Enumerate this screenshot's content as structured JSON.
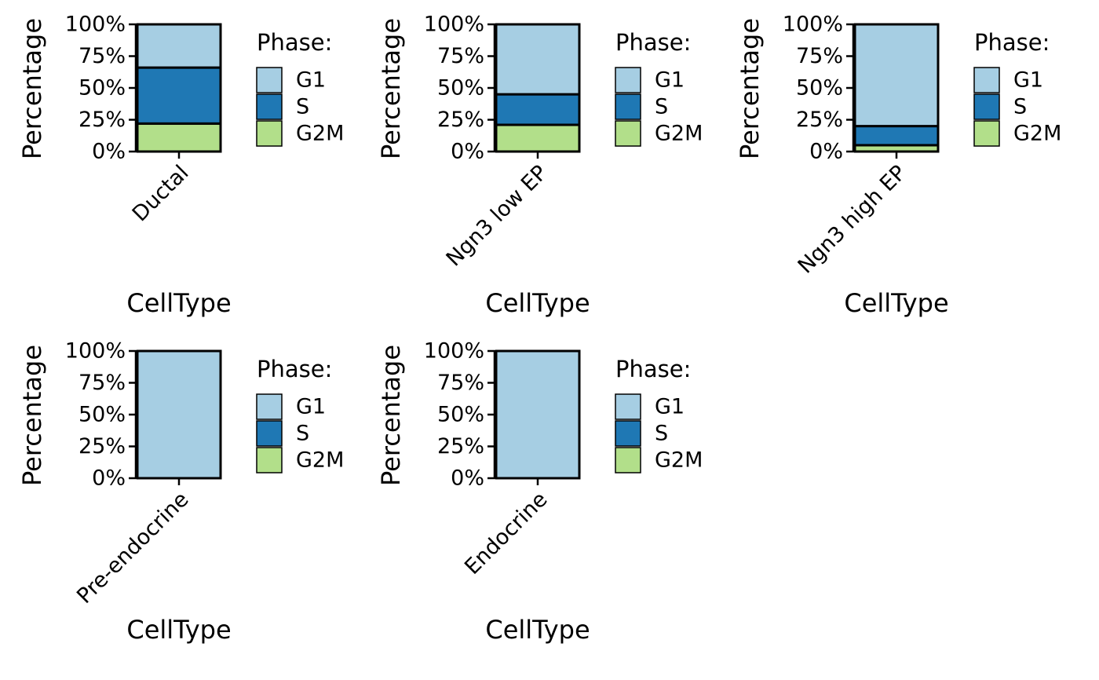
{
  "chart_data": [
    {
      "type": "bar",
      "stacked": true,
      "categories": [
        "Ductal"
      ],
      "series": [
        {
          "name": "G1",
          "values": [
            34
          ]
        },
        {
          "name": "S",
          "values": [
            44
          ]
        },
        {
          "name": "G2M",
          "values": [
            22
          ]
        }
      ],
      "xlabel": "CellType",
      "ylabel": "Percentage",
      "yticks": [
        "0%",
        "25%",
        "50%",
        "75%",
        "100%"
      ],
      "ylim": [
        0,
        100
      ],
      "legend_title": "Phase:",
      "legend_placement": "right"
    },
    {
      "type": "bar",
      "stacked": true,
      "categories": [
        "Ngn3 low EP"
      ],
      "series": [
        {
          "name": "G1",
          "values": [
            55
          ]
        },
        {
          "name": "S",
          "values": [
            24
          ]
        },
        {
          "name": "G2M",
          "values": [
            21
          ]
        }
      ],
      "xlabel": "CellType",
      "ylabel": "Percentage",
      "yticks": [
        "0%",
        "25%",
        "50%",
        "75%",
        "100%"
      ],
      "ylim": [
        0,
        100
      ],
      "legend_title": "Phase:",
      "legend_placement": "right"
    },
    {
      "type": "bar",
      "stacked": true,
      "categories": [
        "Ngn3 high EP"
      ],
      "series": [
        {
          "name": "G1",
          "values": [
            80
          ]
        },
        {
          "name": "S",
          "values": [
            15
          ]
        },
        {
          "name": "G2M",
          "values": [
            5
          ]
        }
      ],
      "xlabel": "CellType",
      "ylabel": "Percentage",
      "yticks": [
        "0%",
        "25%",
        "50%",
        "75%",
        "100%"
      ],
      "ylim": [
        0,
        100
      ],
      "legend_title": "Phase:",
      "legend_placement": "right"
    },
    {
      "type": "bar",
      "stacked": true,
      "categories": [
        "Pre-endocrine"
      ],
      "series": [
        {
          "name": "G1",
          "values": [
            100
          ]
        },
        {
          "name": "S",
          "values": [
            0
          ]
        },
        {
          "name": "G2M",
          "values": [
            0
          ]
        }
      ],
      "xlabel": "CellType",
      "ylabel": "Percentage",
      "yticks": [
        "0%",
        "25%",
        "50%",
        "75%",
        "100%"
      ],
      "ylim": [
        0,
        100
      ],
      "legend_title": "Phase:",
      "legend_placement": "right"
    },
    {
      "type": "bar",
      "stacked": true,
      "categories": [
        "Endocrine"
      ],
      "series": [
        {
          "name": "G1",
          "values": [
            100
          ]
        },
        {
          "name": "S",
          "values": [
            0
          ]
        },
        {
          "name": "G2M",
          "values": [
            0
          ]
        }
      ],
      "xlabel": "CellType",
      "ylabel": "Percentage",
      "yticks": [
        "0%",
        "25%",
        "50%",
        "75%",
        "100%"
      ],
      "ylim": [
        0,
        100
      ],
      "legend_title": "Phase:",
      "legend_placement": "right"
    }
  ],
  "colors": {
    "G1": "#a6cee3",
    "S": "#1f78b4",
    "G2M": "#b2df8a",
    "outline": "#000000"
  }
}
